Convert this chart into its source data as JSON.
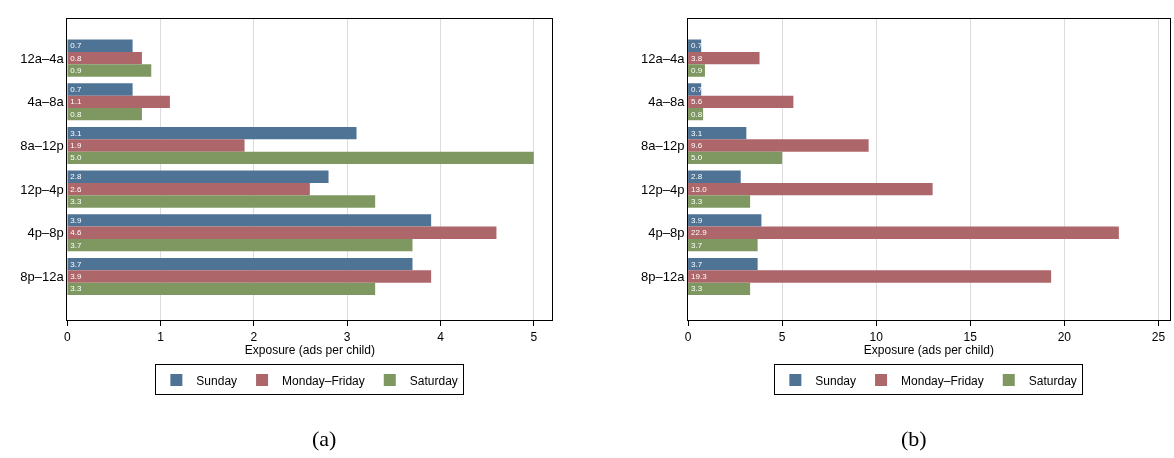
{
  "chart_data": [
    {
      "type": "bar",
      "orientation": "horizontal",
      "annotations": [
        "(a)"
      ],
      "xlabel": "Exposure (ads per child)",
      "categories": [
        "12a–4a",
        "4a–8a",
        "8a–12p",
        "12p–4p",
        "4p–8p",
        "8p–12a"
      ],
      "series": [
        {
          "name": "Sunday",
          "color": "#4f7394",
          "values": [
            0.7,
            0.7,
            3.1,
            2.8,
            3.9,
            3.7
          ],
          "value_labels": [
            "0.7",
            "0.7",
            "3.1",
            "2.8",
            "3.9",
            "3.7"
          ]
        },
        {
          "name": "Monday–Friday",
          "color": "#ad676b",
          "values": [
            0.8,
            1.1,
            1.9,
            2.6,
            4.6,
            3.9
          ],
          "value_labels": [
            "0.8",
            "1.1",
            "1.9",
            "2.6",
            "4.6",
            "3.9"
          ]
        },
        {
          "name": "Saturday",
          "color": "#7f9862",
          "values": [
            0.9,
            0.8,
            5.0,
            3.3,
            3.7,
            3.3
          ],
          "value_labels": [
            "0.9",
            "0.8",
            "5.0",
            "3.3",
            "3.7",
            "3.3"
          ]
        }
      ],
      "xlim": [
        0,
        5.2
      ],
      "xticks": [
        0,
        1,
        2,
        3,
        4,
        5
      ],
      "grid": "x",
      "legend": "bottom"
    },
    {
      "type": "bar",
      "orientation": "horizontal",
      "annotations": [
        "(b)"
      ],
      "xlabel": "Exposure (ads per child)",
      "categories": [
        "12a–4a",
        "4a–8a",
        "8a–12p",
        "12p–4p",
        "4p–8p",
        "8p–12a"
      ],
      "series": [
        {
          "name": "Sunday",
          "color": "#4f7394",
          "values": [
            0.7,
            0.7,
            3.1,
            2.8,
            3.9,
            3.7
          ],
          "value_labels": [
            "0.7",
            "0.7",
            "3.1",
            "2.8",
            "3.9",
            "3.7"
          ]
        },
        {
          "name": "Monday–Friday",
          "color": "#ad676b",
          "values": [
            3.8,
            5.6,
            9.6,
            13.0,
            22.9,
            19.3
          ],
          "value_labels": [
            "3.8",
            "5.6",
            "9.6",
            "13.0",
            "22.9",
            "19.3"
          ]
        },
        {
          "name": "Saturday",
          "color": "#7f9862",
          "values": [
            0.9,
            0.8,
            5.0,
            3.3,
            3.7,
            3.3
          ],
          "value_labels": [
            "0.9",
            "0.8",
            "5.0",
            "3.3",
            "3.7",
            "3.3"
          ]
        }
      ],
      "xlim": [
        0,
        25.6
      ],
      "xticks": [
        0,
        5,
        10,
        15,
        20,
        25
      ],
      "grid": "x",
      "legend": "bottom"
    }
  ]
}
